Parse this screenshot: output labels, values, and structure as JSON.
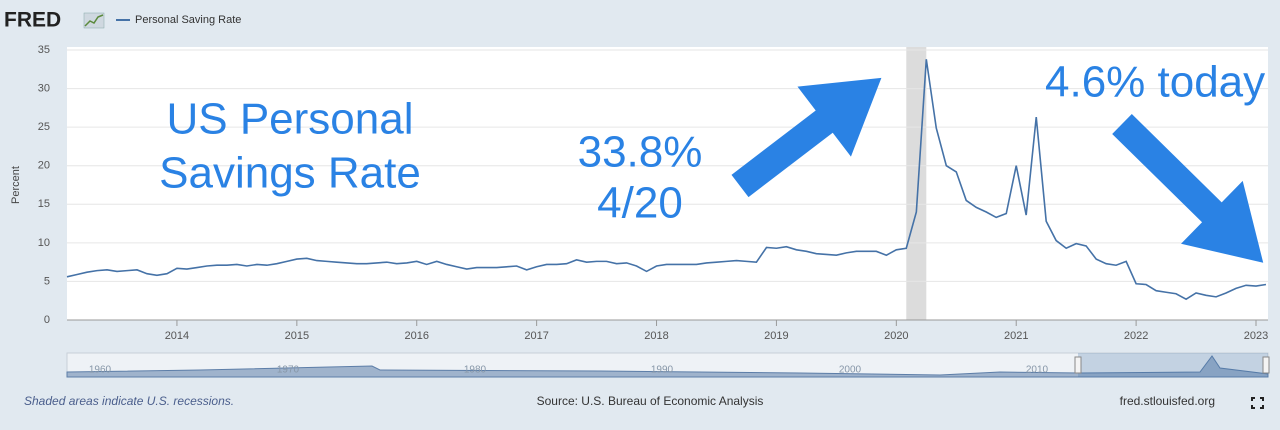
{
  "header": {
    "logo": "FRED"
  },
  "chart_data": {
    "type": "line",
    "y_label": "Percent",
    "x": [
      2013.083,
      2013.167,
      2013.25,
      2013.333,
      2013.417,
      2013.5,
      2013.583,
      2013.667,
      2013.75,
      2013.833,
      2013.917,
      2014,
      2014.083,
      2014.167,
      2014.25,
      2014.333,
      2014.417,
      2014.5,
      2014.583,
      2014.667,
      2014.75,
      2014.833,
      2014.917,
      2015,
      2015.083,
      2015.167,
      2015.25,
      2015.333,
      2015.417,
      2015.5,
      2015.583,
      2015.667,
      2015.75,
      2015.833,
      2015.917,
      2016,
      2016.083,
      2016.167,
      2016.25,
      2016.333,
      2016.417,
      2016.5,
      2016.583,
      2016.667,
      2016.75,
      2016.833,
      2016.917,
      2017,
      2017.083,
      2017.167,
      2017.25,
      2017.333,
      2017.417,
      2017.5,
      2017.583,
      2017.667,
      2017.75,
      2017.833,
      2017.917,
      2018,
      2018.083,
      2018.167,
      2018.25,
      2018.333,
      2018.417,
      2018.5,
      2018.583,
      2018.667,
      2018.75,
      2018.833,
      2018.917,
      2019,
      2019.083,
      2019.167,
      2019.25,
      2019.333,
      2019.417,
      2019.5,
      2019.583,
      2019.667,
      2019.75,
      2019.833,
      2019.917,
      2020,
      2020.083,
      2020.167,
      2020.25,
      2020.333,
      2020.417,
      2020.5,
      2020.583,
      2020.667,
      2020.75,
      2020.833,
      2020.917,
      2021,
      2021.083,
      2021.167,
      2021.25,
      2021.333,
      2021.417,
      2021.5,
      2021.583,
      2021.667,
      2021.75,
      2021.833,
      2021.917,
      2022,
      2022.083,
      2022.167,
      2022.25,
      2022.333,
      2022.417,
      2022.5,
      2022.583,
      2022.667,
      2022.75,
      2022.833,
      2022.917,
      2023,
      2023.083
    ],
    "series": [
      {
        "name": "Personal Saving Rate",
        "color": "#4572a7",
        "values": [
          5.6,
          5.9,
          6.2,
          6.4,
          6.5,
          6.3,
          6.4,
          6.5,
          6.0,
          5.8,
          6.0,
          6.7,
          6.6,
          6.8,
          7.0,
          7.1,
          7.1,
          7.2,
          7.0,
          7.2,
          7.1,
          7.3,
          7.6,
          7.9,
          8.0,
          7.7,
          7.6,
          7.5,
          7.4,
          7.3,
          7.3,
          7.4,
          7.5,
          7.3,
          7.4,
          7.6,
          7.2,
          7.6,
          7.2,
          6.9,
          6.6,
          6.8,
          6.8,
          6.8,
          6.9,
          7.0,
          6.5,
          6.9,
          7.2,
          7.2,
          7.3,
          7.8,
          7.5,
          7.6,
          7.6,
          7.3,
          7.4,
          7.0,
          6.3,
          7.0,
          7.2,
          7.2,
          7.2,
          7.2,
          7.4,
          7.5,
          7.6,
          7.7,
          7.6,
          7.5,
          9.4,
          9.3,
          9.5,
          9.1,
          8.9,
          8.6,
          8.5,
          8.4,
          8.7,
          8.9,
          8.9,
          8.9,
          8.4,
          9.1,
          9.3,
          14.0,
          33.8,
          24.9,
          20.0,
          19.2,
          15.5,
          14.6,
          14.0,
          13.3,
          13.8,
          20.0,
          13.6,
          26.3,
          12.8,
          10.3,
          9.3,
          9.9,
          9.6,
          7.9,
          7.3,
          7.1,
          7.6,
          4.7,
          4.6,
          3.8,
          3.6,
          3.4,
          2.7,
          3.5,
          3.2,
          3.0,
          3.5,
          4.1,
          4.5,
          4.4,
          4.6
        ]
      }
    ],
    "recessions": [
      [
        2020.083,
        2020.25
      ]
    ],
    "recession_color": "#dcdcdc",
    "xlim": [
      2013.083,
      2023.1
    ],
    "xticks": [
      2014,
      2015,
      2016,
      2017,
      2018,
      2019,
      2020,
      2021,
      2022,
      2023
    ],
    "ylim": [
      0,
      35
    ],
    "yticks": [
      0,
      5,
      10,
      15,
      20,
      25,
      30,
      35
    ],
    "grid": true,
    "annotations": {
      "title_lines": [
        "US Personal",
        "Savings Rate"
      ],
      "peak_lines": [
        "33.8%",
        "4/20"
      ],
      "today": "4.6% today"
    }
  },
  "navigator": {
    "labels": [
      "1960",
      "1970",
      "1980",
      "1990",
      "2000",
      "2010"
    ]
  },
  "footer": {
    "note": "Shaded areas indicate U.S. recessions.",
    "source": "Source: U.S. Bureau of Economic Analysis",
    "site": "fred.stlouisfed.org"
  }
}
